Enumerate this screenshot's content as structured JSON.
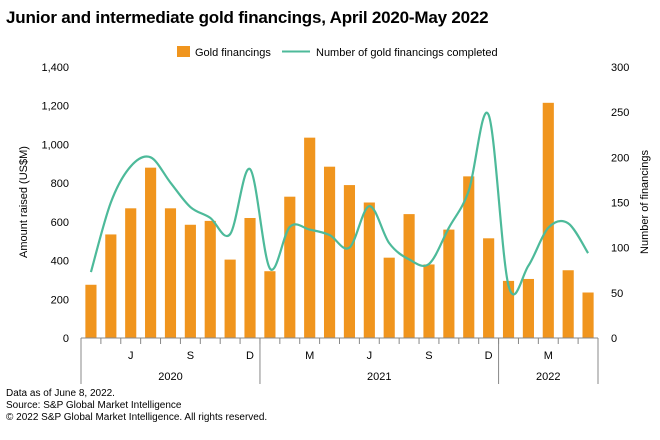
{
  "title": "Junior and intermediate gold financings, April 2020-May 2022",
  "footer": {
    "note": "Data as of June 8, 2022.",
    "source": "Source: S&P Global Market Intelligence",
    "copyright": "© 2022 S&P Global Market Intelligence. All rights reserved."
  },
  "colors": {
    "bar": "#F0951E",
    "line": "#4DBA9A",
    "axis": "#888888",
    "text": "#000000"
  },
  "chart_data": {
    "type": "bar",
    "title": "Junior and intermediate gold financings, April 2020-May 2022",
    "ylabel": "Amount raised (US$M)",
    "y2label": "Number of financings",
    "ylim": [
      0,
      1400
    ],
    "y2lim": [
      0,
      300
    ],
    "yticks": [
      "0",
      "200",
      "400",
      "600",
      "800",
      "1,000",
      "1,200",
      "1,400"
    ],
    "y2ticks": [
      "0",
      "50",
      "100",
      "150",
      "200",
      "250",
      "300"
    ],
    "legend_position": "top-center",
    "grid": false,
    "categories": [
      "2020-04",
      "2020-05",
      "2020-06",
      "2020-07",
      "2020-08",
      "2020-09",
      "2020-10",
      "2020-11",
      "2020-12",
      "2021-01",
      "2021-02",
      "2021-03",
      "2021-04",
      "2021-05",
      "2021-06",
      "2021-07",
      "2021-08",
      "2021-09",
      "2021-10",
      "2021-11",
      "2021-12",
      "2022-01",
      "2022-02",
      "2022-03",
      "2022-04",
      "2022-05"
    ],
    "month_tick_labels": [
      "",
      "",
      "J",
      "",
      "",
      "S",
      "",
      "",
      "D",
      "",
      "",
      "M",
      "",
      "",
      "J",
      "",
      "",
      "S",
      "",
      "",
      "D",
      "",
      "",
      "M",
      "",
      ""
    ],
    "year_labels": [
      {
        "label": "2020",
        "start": 0,
        "end": 8
      },
      {
        "label": "2021",
        "start": 9,
        "end": 20
      },
      {
        "label": "2022",
        "start": 21,
        "end": 25
      }
    ],
    "series": [
      {
        "name": "Gold financings",
        "kind": "bar",
        "axis": "left",
        "values": [
          275,
          535,
          670,
          880,
          670,
          585,
          605,
          405,
          620,
          345,
          730,
          1035,
          885,
          790,
          700,
          415,
          640,
          380,
          560,
          835,
          515,
          295,
          305,
          1215,
          350,
          235
        ]
      },
      {
        "name": "Number of gold financings completed",
        "kind": "line",
        "axis": "right",
        "values": [
          73,
          150,
          190,
          200,
          172,
          145,
          133,
          115,
          187,
          77,
          123,
          120,
          114,
          100,
          146,
          105,
          87,
          82,
          122,
          163,
          247,
          58,
          80,
          122,
          127,
          94
        ]
      }
    ]
  }
}
